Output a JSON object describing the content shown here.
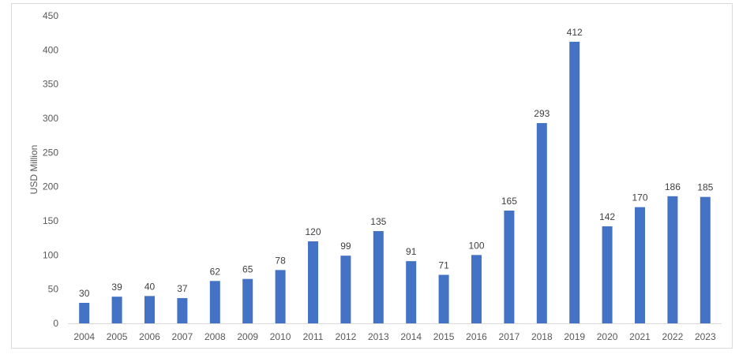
{
  "chart_data": {
    "type": "bar",
    "title": "",
    "xlabel": "",
    "ylabel": "USD Million",
    "ylim": [
      0,
      450
    ],
    "yticks": [
      0,
      50,
      100,
      150,
      200,
      250,
      300,
      350,
      400,
      450
    ],
    "grid": false,
    "legend": "none",
    "bar_color": "#4472C4",
    "categories": [
      "2004",
      "2005",
      "2006",
      "2007",
      "2008",
      "2009",
      "2010",
      "2011",
      "2012",
      "2013",
      "2014",
      "2015",
      "2016",
      "2017",
      "2018",
      "2019",
      "2020",
      "2021",
      "2022",
      "2023"
    ],
    "values": [
      30,
      39,
      40,
      37,
      62,
      65,
      78,
      120,
      99,
      135,
      91,
      71,
      100,
      165,
      293,
      412,
      142,
      170,
      186,
      185
    ]
  }
}
